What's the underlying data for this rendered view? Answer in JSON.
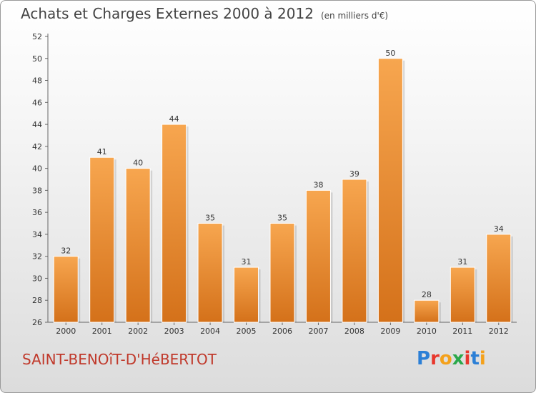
{
  "header": {
    "title": "Achats et Charges Externes 2000 à 2012",
    "unit": "(en milliers d'€)"
  },
  "commune": "SAINT-BENOîT-D'HéBERTOT",
  "brand": {
    "letters": [
      "P",
      "r",
      "o",
      "x",
      "i",
      "t",
      "i"
    ],
    "colors": [
      "#2b7fd6",
      "#e8372c",
      "#f4a11b",
      "#2aa84a",
      "#e8372c",
      "#2b7fd6",
      "#f4a11b"
    ]
  },
  "chart_data": {
    "type": "bar",
    "title": "Achats et Charges Externes 2000 à 2012",
    "subtitle": "(en milliers d'€)",
    "categories": [
      "2000",
      "2001",
      "2002",
      "2003",
      "2004",
      "2005",
      "2006",
      "2007",
      "2008",
      "2009",
      "2010",
      "2011",
      "2012"
    ],
    "values": [
      32,
      41,
      40,
      44,
      35,
      31,
      35,
      38,
      39,
      50,
      28,
      31,
      34
    ],
    "ylim": [
      26,
      52
    ],
    "yticks": [
      26,
      28,
      30,
      32,
      34,
      36,
      38,
      40,
      42,
      44,
      46,
      48,
      50,
      52
    ],
    "grid": false,
    "legend": "none",
    "bar_color_top": "#f7a64f",
    "bar_color_bottom": "#d4711a"
  }
}
